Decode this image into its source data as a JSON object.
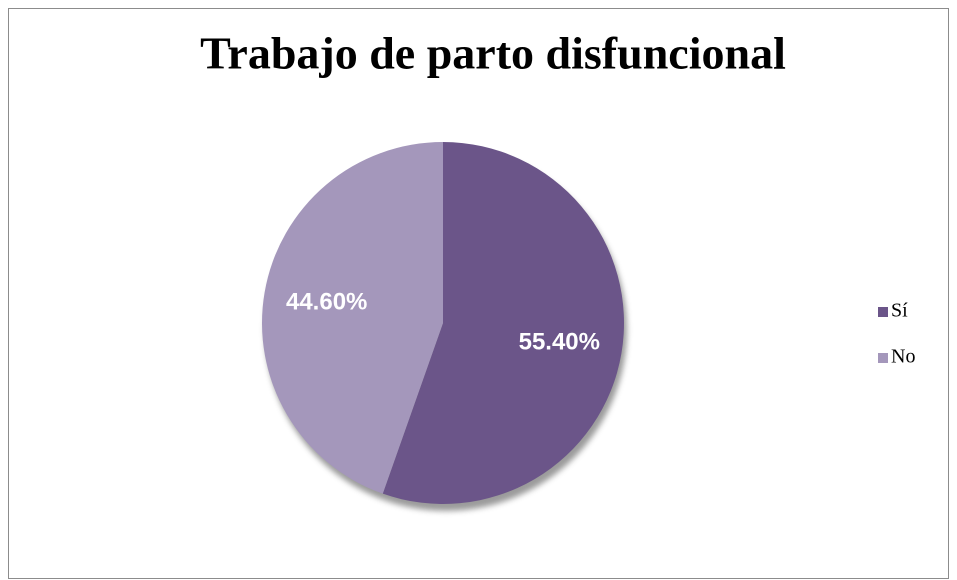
{
  "chart_data": {
    "type": "pie",
    "title": "Trabajo de parto disfuncional",
    "categories": [
      "Sí",
      "No"
    ],
    "values": [
      55.4,
      44.6
    ],
    "value_labels": [
      "55.40%",
      "44.60%"
    ],
    "colors": [
      "#6b5589",
      "#a497bb"
    ],
    "legend": "right"
  }
}
